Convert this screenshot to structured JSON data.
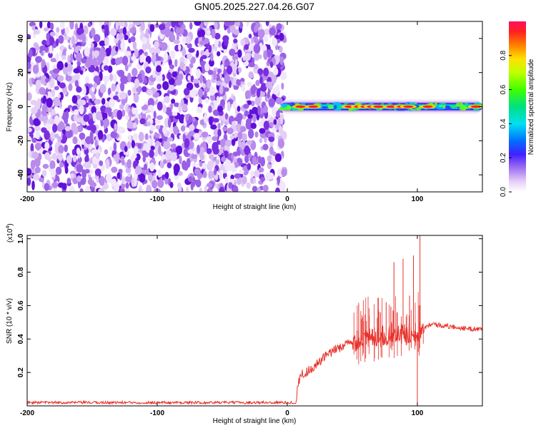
{
  "title": "GN05.2025.227.04.26.G07",
  "chart_data": [
    {
      "type": "heatmap",
      "xlabel": "Height of straight line (km)",
      "ylabel": "Frequency (Hz)",
      "xlim": [
        -200,
        150
      ],
      "ylim": [
        -50,
        50
      ],
      "x_ticks": [
        "-200",
        "-100",
        "0",
        "100"
      ],
      "y_ticks": [
        "-40",
        "-20",
        "0",
        "20",
        "40"
      ],
      "colorbar": {
        "label": "Normalized spectral amplitude",
        "ticks": [
          "0.0",
          "0.2",
          "0.4",
          "0.6",
          "0.8"
        ],
        "range": [
          0,
          1
        ]
      },
      "noise_region": {
        "x_range": [
          -200,
          -2
        ],
        "y_range": [
          -50,
          50
        ],
        "amplitude": 0.05
      },
      "signal_band": {
        "x_range": [
          -5,
          150
        ],
        "center_frequency": 0,
        "peaks": [
          {
            "x": 10,
            "amplitude": 0.9
          },
          {
            "x": 20,
            "amplitude": 0.85
          },
          {
            "x": 48,
            "amplitude": 0.95
          },
          {
            "x": 55,
            "amplitude": 0.9
          },
          {
            "x": 60,
            "amplitude": 0.9
          },
          {
            "x": 65,
            "amplitude": 0.95
          },
          {
            "x": 70,
            "amplitude": 0.9
          },
          {
            "x": 80,
            "amplitude": 0.95
          },
          {
            "x": 88,
            "amplitude": 0.9
          },
          {
            "x": 93,
            "amplitude": 0.95
          },
          {
            "x": 108,
            "amplitude": 0.9
          },
          {
            "x": 145,
            "amplitude": 0.9
          }
        ]
      }
    },
    {
      "type": "line",
      "xlabel": "Height of straight line (km)",
      "ylabel": "SNR (10 * v/v)",
      "y_multiplier": "(x10",
      "y_multiplier_exp": "4",
      "y_multiplier_close": ")",
      "xlim": [
        -200,
        150
      ],
      "ylim": [
        0,
        1.02
      ],
      "x_ticks": [
        "-200",
        "-100",
        "0",
        "100"
      ],
      "y_ticks": [
        "0.2",
        "0.4",
        "0.6",
        "0.8",
        "1.0"
      ],
      "series": [
        {
          "color": "#e8302a",
          "x": [
            -200,
            -100,
            0,
            7,
            8,
            10,
            20,
            30,
            40,
            50,
            60,
            70,
            80,
            90,
            100,
            105,
            110,
            120,
            130,
            140,
            150
          ],
          "y": [
            0.02,
            0.02,
            0.02,
            0.02,
            0.13,
            0.18,
            0.23,
            0.3,
            0.35,
            0.38,
            0.4,
            0.42,
            0.42,
            0.43,
            0.44,
            0.47,
            0.49,
            0.48,
            0.47,
            0.46,
            0.46
          ]
        }
      ],
      "spikes": [
        {
          "x": 57,
          "y": 0.52
        },
        {
          "x": 63,
          "y": 0.54
        },
        {
          "x": 70,
          "y": 0.58
        },
        {
          "x": 76,
          "y": 0.62
        },
        {
          "x": 82,
          "y": 0.86
        },
        {
          "x": 89,
          "y": 0.88
        },
        {
          "x": 94,
          "y": 0.66
        },
        {
          "x": 97,
          "y": 0.9
        },
        {
          "x": 102,
          "y": 1.02
        },
        {
          "x": 100,
          "y": 0.01
        }
      ]
    }
  ]
}
